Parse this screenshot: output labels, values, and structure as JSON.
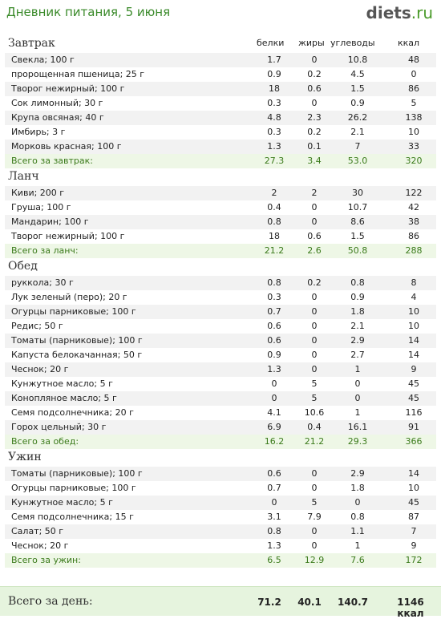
{
  "header": {
    "title": "Дневник питания, 5 июня",
    "logo_main": "diets",
    "logo_domain": ".ru"
  },
  "columns": {
    "protein": "белки",
    "fat": "жиры",
    "carbs": "углеводы",
    "kcal": "ккал"
  },
  "sections": [
    {
      "name": "Завтрак",
      "rows": [
        [
          "Свекла; 100 г",
          "1.7",
          "0",
          "10.8",
          "48"
        ],
        [
          "пророщенная пшеница; 25 г",
          "0.9",
          "0.2",
          "4.5",
          "0"
        ],
        [
          "Творог нежирный; 100 г",
          "18",
          "0.6",
          "1.5",
          "86"
        ],
        [
          "Сок лимонный; 30 г",
          "0.3",
          "0",
          "0.9",
          "5"
        ],
        [
          "Крупа овсяная; 40 г",
          "4.8",
          "2.3",
          "26.2",
          "138"
        ],
        [
          "Имбирь; 3 г",
          "0.3",
          "0.2",
          "2.1",
          "10"
        ],
        [
          "Морковь красная; 100 г",
          "1.3",
          "0.1",
          "7",
          "33"
        ]
      ],
      "total": [
        "Всего за завтрак:",
        "27.3",
        "3.4",
        "53.0",
        "320"
      ]
    },
    {
      "name": "Ланч",
      "rows": [
        [
          "Киви; 200 г",
          "2",
          "2",
          "30",
          "122"
        ],
        [
          "Груша; 100 г",
          "0.4",
          "0",
          "10.7",
          "42"
        ],
        [
          "Мандарин; 100 г",
          "0.8",
          "0",
          "8.6",
          "38"
        ],
        [
          "Творог нежирный; 100 г",
          "18",
          "0.6",
          "1.5",
          "86"
        ]
      ],
      "total": [
        "Всего за ланч:",
        "21.2",
        "2.6",
        "50.8",
        "288"
      ]
    },
    {
      "name": "Обед",
      "rows": [
        [
          "руккола; 30 г",
          "0.8",
          "0.2",
          "0.8",
          "8"
        ],
        [
          "Лук зеленый (перо); 20 г",
          "0.3",
          "0",
          "0.9",
          "4"
        ],
        [
          "Огурцы парниковые; 100 г",
          "0.7",
          "0",
          "1.8",
          "10"
        ],
        [
          "Редис; 50 г",
          "0.6",
          "0",
          "2.1",
          "10"
        ],
        [
          "Томаты (парниковые); 100 г",
          "0.6",
          "0",
          "2.9",
          "14"
        ],
        [
          "Капуста белокачанная; 50 г",
          "0.9",
          "0",
          "2.7",
          "14"
        ],
        [
          "Чеснок; 20 г",
          "1.3",
          "0",
          "1",
          "9"
        ],
        [
          "Кунжутное масло; 5 г",
          "0",
          "5",
          "0",
          "45"
        ],
        [
          "Конопляное масло; 5 г",
          "0",
          "5",
          "0",
          "45"
        ],
        [
          "Семя подсолнечника; 20 г",
          "4.1",
          "10.6",
          "1",
          "116"
        ],
        [
          "Горох цельный; 30 г",
          "6.9",
          "0.4",
          "16.1",
          "91"
        ]
      ],
      "total": [
        "Всего за обед:",
        "16.2",
        "21.2",
        "29.3",
        "366"
      ]
    },
    {
      "name": "Ужин",
      "rows": [
        [
          "Томаты (парниковые); 100 г",
          "0.6",
          "0",
          "2.9",
          "14"
        ],
        [
          "Огурцы парниковые; 100 г",
          "0.7",
          "0",
          "1.8",
          "10"
        ],
        [
          "Кунжутное масло; 5 г",
          "0",
          "5",
          "0",
          "45"
        ],
        [
          "Семя подсолнечника; 15 г",
          "3.1",
          "7.9",
          "0.8",
          "87"
        ],
        [
          "Салат; 50 г",
          "0.8",
          "0",
          "1.1",
          "7"
        ],
        [
          "Чеснок; 20 г",
          "1.3",
          "0",
          "1",
          "9"
        ]
      ],
      "total": [
        "Всего за ужин:",
        "6.5",
        "12.9",
        "7.6",
        "172"
      ]
    }
  ],
  "day_total": {
    "label": "Всего за день:",
    "protein": "71.2",
    "fat": "40.1",
    "carbs": "140.7",
    "kcal": "1146 ккал"
  }
}
